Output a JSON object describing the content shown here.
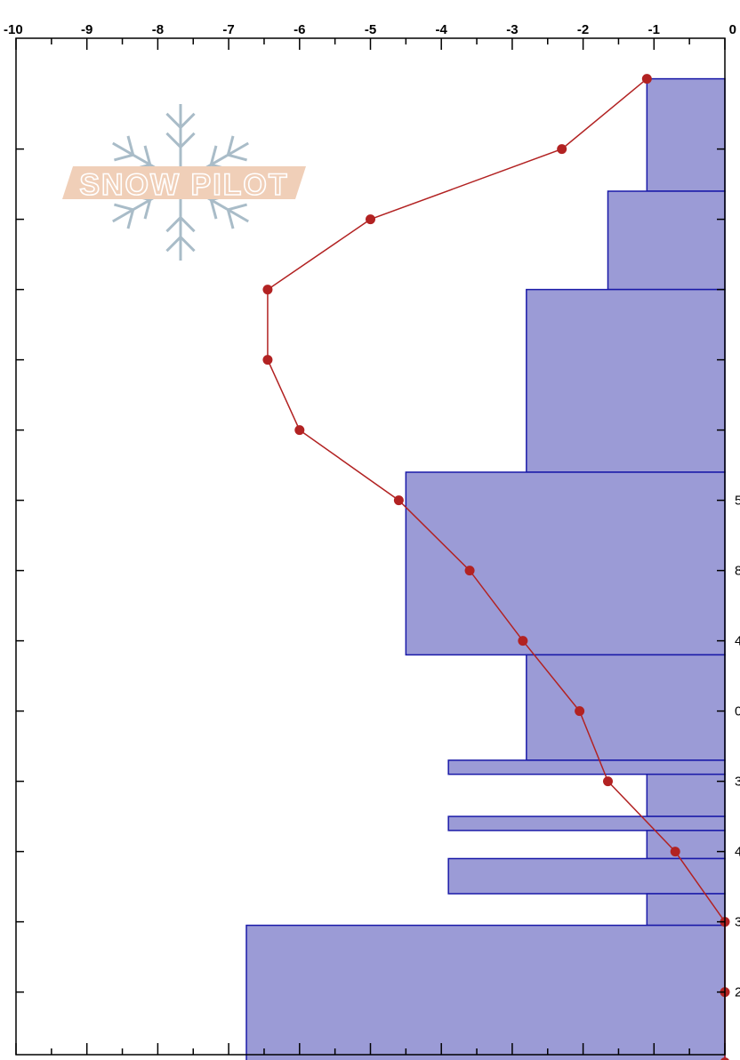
{
  "logo": {
    "name": "snowpilot-logo",
    "text": "SNOW PILOT",
    "band_color": "#f0cfb8",
    "flake_color": "#a9bcc8"
  },
  "chart_data": {
    "type": "bar",
    "orientation": "horizontal",
    "title": "",
    "xlabel": "",
    "ylabel": "",
    "xlim": [
      -10,
      0
    ],
    "x_ticks": [
      -10,
      -9,
      -8,
      -7,
      -6,
      -5,
      -4,
      -3,
      -2,
      -1,
      0
    ],
    "x_tick_labels": [
      "-10",
      "-9",
      "-8",
      "-7",
      "-6",
      "-5",
      "-4",
      "-3",
      "-2",
      "-1",
      "0"
    ],
    "right_axis_labels_clipped": [
      "5",
      "8",
      "4",
      "0",
      "3",
      "4",
      "3",
      "2"
    ],
    "bars_color": "#9b9bd6",
    "bars_edge_color": "#1a1aa8",
    "bars": [
      {
        "top": 0.4,
        "bottom": 2.0,
        "value": -1.1
      },
      {
        "top": 2.0,
        "bottom": 3.4,
        "value": -1.65
      },
      {
        "top": 3.4,
        "bottom": 6.0,
        "value": -2.8
      },
      {
        "top": 6.0,
        "bottom": 8.6,
        "value": -4.5
      },
      {
        "top": 8.6,
        "bottom": 10.1,
        "value": -2.8
      },
      {
        "top": 10.1,
        "bottom": 10.3,
        "value": -3.9
      },
      {
        "top": 10.3,
        "bottom": 10.9,
        "value": -1.1
      },
      {
        "top": 10.9,
        "bottom": 11.1,
        "value": -3.9
      },
      {
        "top": 11.1,
        "bottom": 11.5,
        "value": -1.1
      },
      {
        "top": 11.5,
        "bottom": 12.0,
        "value": -3.9
      },
      {
        "top": 12.0,
        "bottom": 12.45,
        "value": -1.1
      },
      {
        "top": 12.45,
        "bottom": 14.5,
        "value": -6.75
      }
    ],
    "temperature_color": "#b22222",
    "temperature": {
      "depth": [
        0.4,
        1.4,
        2.4,
        3.4,
        4.4,
        5.4,
        6.4,
        7.4,
        8.4,
        9.4,
        10.4,
        11.4,
        12.4,
        13.4,
        14.4
      ],
      "value": [
        -1.1,
        -2.3,
        -5.0,
        -6.45,
        -6.45,
        -6.0,
        -4.6,
        -3.6,
        -2.85,
        -2.05,
        -1.65,
        -0.7,
        0.0,
        0.0,
        0.0
      ]
    }
  }
}
